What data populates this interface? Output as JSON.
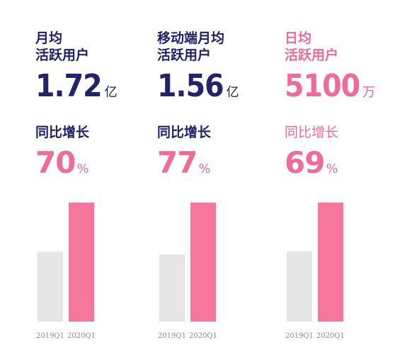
{
  "columns": [
    {
      "label": "月均\n活跃用户",
      "value": "1.72",
      "unit": "亿",
      "yoy_label": "同比增长",
      "yoy_value": "70",
      "yoy_unit": "%"
    },
    {
      "label": "移动端月均\n活跃用户",
      "value": "1.56",
      "unit": "亿",
      "yoy_label": "同比增长",
      "yoy_value": "77",
      "yoy_unit": "%"
    },
    {
      "label": "日均\n活跃用户",
      "value": "5100",
      "unit": "万",
      "yoy_label": "同比增长",
      "yoy_value": "69",
      "yoy_unit": "%"
    }
  ],
  "colors": {
    "navy": "#23236b",
    "pink": "#f06b98",
    "bar_2019": "#e6e6e6",
    "bar_2020": "#f7769c"
  },
  "chart_data": [
    {
      "type": "bar",
      "categories": [
        "2019Q1",
        "2020Q1"
      ],
      "values": [
        1.01,
        1.72
      ]
    },
    {
      "type": "bar",
      "categories": [
        "2019Q1",
        "2020Q1"
      ],
      "values": [
        0.88,
        1.56
      ]
    },
    {
      "type": "bar",
      "categories": [
        "2019Q1",
        "2020Q1"
      ],
      "values": [
        3018,
        5100
      ]
    }
  ]
}
